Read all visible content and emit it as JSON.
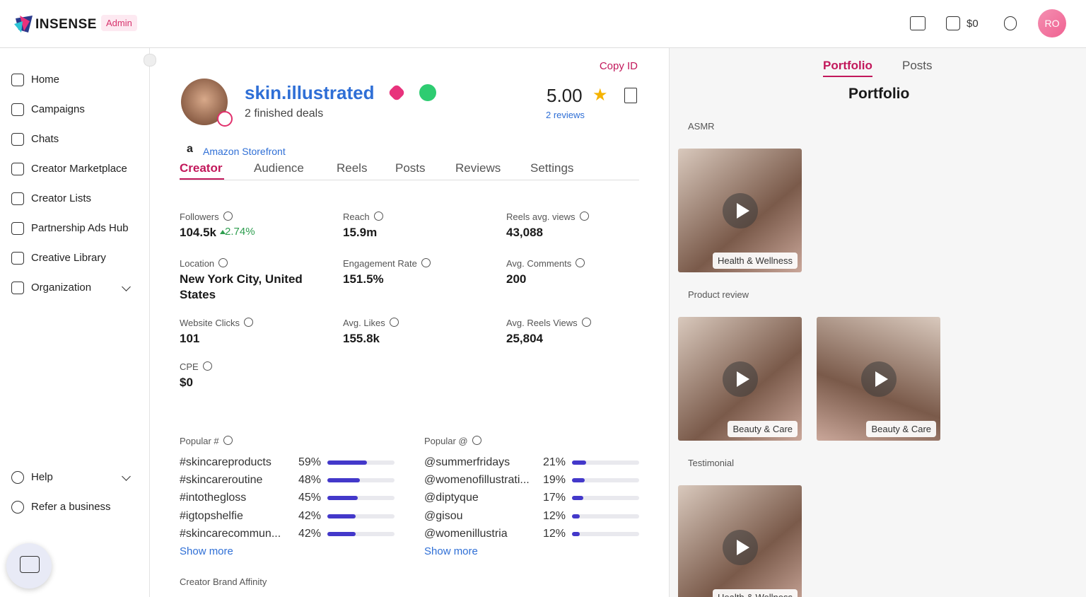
{
  "header": {
    "brand": "INSENSE",
    "badge": "Admin",
    "balance": "$0",
    "avatar": "RO"
  },
  "sidebar": {
    "nav": [
      "Home",
      "Campaigns",
      "Chats",
      "Creator Marketplace",
      "Creator Lists",
      "Partnership Ads Hub",
      "Creative Library",
      "Organization"
    ],
    "bottom": [
      "Help",
      "Refer a business"
    ]
  },
  "profile": {
    "copy_id": "Copy ID",
    "username": "skin.illustrated",
    "deals": "2 finished deals",
    "rating": "5.00",
    "reviews": "2 reviews",
    "storefront": "Amazon Storefront",
    "tabs": [
      "Creator",
      "Audience",
      "Reels",
      "Posts",
      "Reviews",
      "Settings"
    ]
  },
  "stats": [
    {
      "label": "Followers",
      "value": "104.5k",
      "change": "2.74%"
    },
    {
      "label": "Reach",
      "value": "15.9m"
    },
    {
      "label": "Reels avg. views",
      "value": "43,088"
    },
    {
      "label": "Location",
      "value": "New York City, United States"
    },
    {
      "label": "Engagement Rate",
      "value": "151.5%"
    },
    {
      "label": "Avg. Comments",
      "value": "200"
    },
    {
      "label": "Website Clicks",
      "value": "101"
    },
    {
      "label": "Avg. Likes",
      "value": "155.8k"
    },
    {
      "label": "Avg. Reels Views",
      "value": "25,804"
    },
    {
      "label": "CPE",
      "value": "$0"
    }
  ],
  "popular_hashtags": {
    "title": "Popular #",
    "items": [
      {
        "tag": "#skincareproducts",
        "share": {
          "value": 59,
          "label": "59%"
        }
      },
      {
        "tag": "#skincareroutine",
        "share": {
          "value": 48,
          "label": "48%"
        }
      },
      {
        "tag": "#intothegloss",
        "share": {
          "value": 45,
          "label": "45%"
        }
      },
      {
        "tag": "#igtopshelfie",
        "share": {
          "value": 42,
          "label": "42%"
        }
      },
      {
        "tag": "#skincarecommun...",
        "share": {
          "value": 42,
          "label": "42%"
        }
      }
    ],
    "more": "Show more"
  },
  "popular_mentions": {
    "title": "Popular @",
    "items": [
      {
        "tag": "@summerfridays",
        "share": {
          "value": 21,
          "label": "21%"
        }
      },
      {
        "tag": "@womenofillustrati...",
        "share": {
          "value": 19,
          "label": "19%"
        }
      },
      {
        "tag": "@diptyque",
        "share": {
          "value": 17,
          "label": "17%"
        }
      },
      {
        "tag": "@gisou",
        "share": {
          "value": 12,
          "label": "12%"
        }
      },
      {
        "tag": "@womenillustria",
        "share": {
          "value": 12,
          "label": "12%"
        }
      }
    ],
    "more": "Show more"
  },
  "brand_affinity": "Creator Brand Affinity",
  "portfolio": {
    "tabs": [
      "Portfolio",
      "Posts"
    ],
    "title": "Portfolio",
    "sections": [
      {
        "name": "ASMR",
        "items": [
          "Health & Wellness"
        ]
      },
      {
        "name": "Product review",
        "items": [
          "Beauty & Care",
          "Beauty & Care"
        ]
      },
      {
        "name": "Testimonial",
        "items": [
          "Health & Wellness"
        ]
      }
    ]
  }
}
